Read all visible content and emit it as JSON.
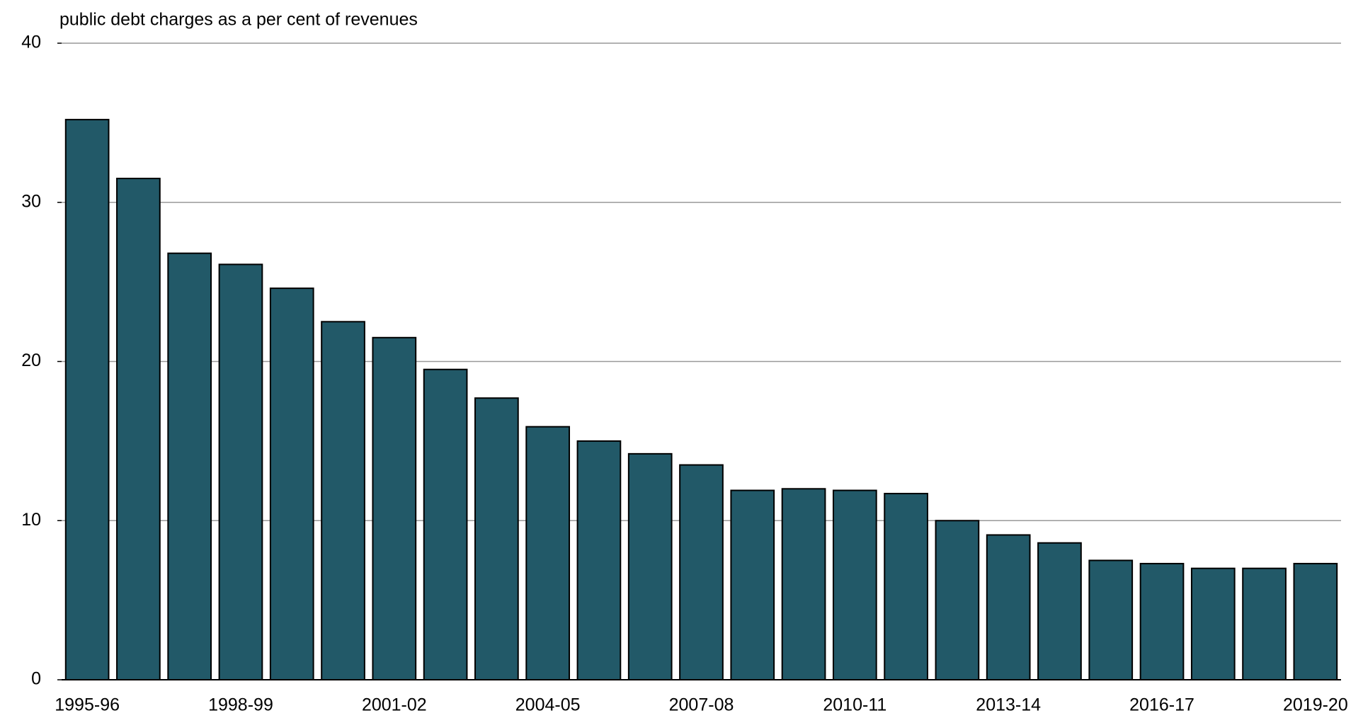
{
  "chart_data": {
    "type": "bar",
    "title": "public debt charges as a per cent of revenues",
    "categories": [
      "1995-96",
      null,
      null,
      "1998-99",
      null,
      null,
      "2001-02",
      null,
      null,
      "2004-05",
      null,
      null,
      "2007-08",
      null,
      null,
      "2010-11",
      null,
      null,
      "2013-14",
      null,
      null,
      "2016-17",
      null,
      null,
      "2019-20"
    ],
    "values": [
      35.2,
      31.5,
      26.8,
      26.1,
      24.6,
      22.5,
      21.5,
      19.5,
      17.7,
      15.9,
      15.0,
      14.2,
      13.5,
      11.9,
      12.0,
      11.9,
      11.7,
      10.0,
      9.1,
      8.6,
      7.5,
      7.3,
      7.0,
      7.0,
      7.3
    ],
    "color": "#225968",
    "ylim": [
      0,
      40
    ],
    "yticks": [
      0,
      10,
      20,
      30,
      40
    ],
    "grid": true
  }
}
